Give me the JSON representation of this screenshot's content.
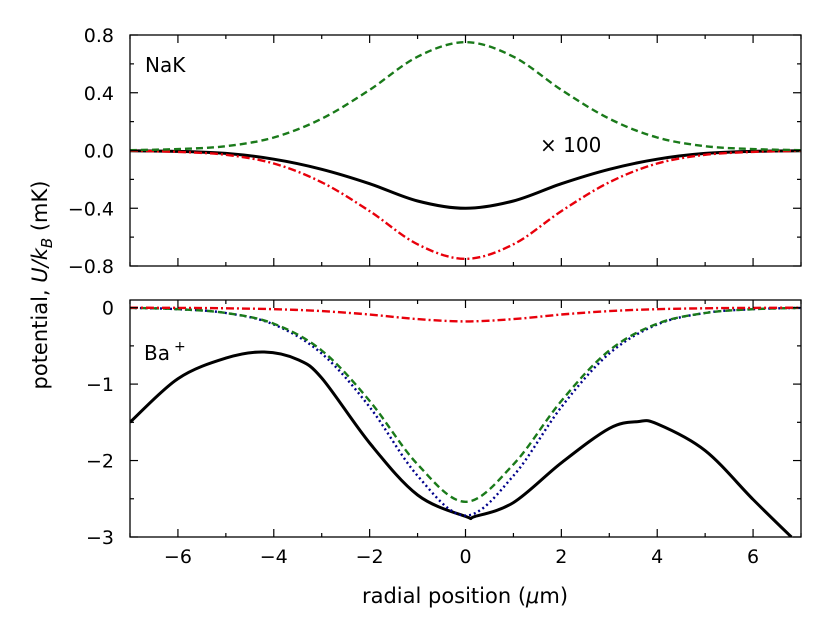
{
  "figure": {
    "xlabel_prefix": "radial position (",
    "xlabel_mu": "μ",
    "xlabel_suffix": "m)",
    "ylabel_prefix": "potential, ",
    "ylabel_U": "U",
    "ylabel_slash_k": "/k",
    "ylabel_sub": "B",
    "ylabel_suffix": " (mK)"
  },
  "chart_data": [
    {
      "type": "line",
      "panel": "top",
      "label": "NaK",
      "annotation": "× 100",
      "xlim": [
        -7,
        7
      ],
      "ylim": [
        -0.8,
        0.8
      ],
      "xticks": [
        -6,
        -4,
        -2,
        0,
        2,
        4,
        6
      ],
      "yticks": [
        -0.8,
        -0.4,
        0.0,
        0.4,
        0.8
      ],
      "ytick_labels": [
        "−0.8",
        "−0.4",
        "0.0",
        "0.4",
        "0.8"
      ],
      "series": [
        {
          "name": "total",
          "style": "solid",
          "color": "#000000",
          "x": [
            -7,
            -6,
            -5,
            -4,
            -3,
            -2,
            -1,
            0,
            1,
            2,
            3,
            4,
            5,
            6,
            7
          ],
          "y": [
            -0.002,
            -0.006,
            -0.02,
            -0.06,
            -0.13,
            -0.23,
            -0.35,
            -0.4,
            -0.35,
            -0.23,
            -0.13,
            -0.06,
            -0.02,
            -0.006,
            -0.002
          ]
        },
        {
          "name": "dash-dot",
          "style": "dashdot",
          "color": "#e8000b",
          "x": [
            -7,
            -6,
            -5,
            -4,
            -3,
            -2,
            -1,
            0,
            1,
            2,
            3,
            4,
            5,
            6,
            7
          ],
          "y": [
            -0.002,
            -0.01,
            -0.03,
            -0.09,
            -0.22,
            -0.42,
            -0.65,
            -0.75,
            -0.65,
            -0.42,
            -0.22,
            -0.09,
            -0.03,
            -0.01,
            -0.002
          ]
        },
        {
          "name": "dashed",
          "style": "dashed",
          "color": "#1a7a1a",
          "x": [
            -7,
            -6,
            -5,
            -4,
            -3,
            -2,
            -1,
            0,
            1,
            2,
            3,
            4,
            5,
            6,
            7
          ],
          "y": [
            0.002,
            0.01,
            0.03,
            0.09,
            0.22,
            0.42,
            0.65,
            0.75,
            0.65,
            0.42,
            0.22,
            0.09,
            0.03,
            0.01,
            0.002
          ]
        }
      ]
    },
    {
      "type": "line",
      "panel": "bottom",
      "label": "Ba",
      "label_sup": "+",
      "xlim": [
        -7,
        7
      ],
      "ylim": [
        -3,
        0.1
      ],
      "xticks": [
        -6,
        -4,
        -2,
        0,
        2,
        4,
        6
      ],
      "xtick_labels": [
        "−6",
        "−4",
        "−2",
        "0",
        "2",
        "4",
        "6"
      ],
      "yticks": [
        -3,
        -2,
        -1,
        0
      ],
      "ytick_labels": [
        "−3",
        "−2",
        "−1",
        "0"
      ],
      "series": [
        {
          "name": "total",
          "style": "solid",
          "color": "#000000",
          "x": [
            -7,
            -6,
            -5,
            -4.2,
            -3.5,
            -3,
            -2,
            -1,
            0,
            0.2,
            1,
            2,
            3,
            3.6,
            4,
            5,
            6,
            6.8
          ],
          "y": [
            -1.5,
            -0.93,
            -0.66,
            -0.58,
            -0.68,
            -0.92,
            -1.77,
            -2.45,
            -2.73,
            -2.73,
            -2.55,
            -2.03,
            -1.58,
            -1.49,
            -1.52,
            -1.87,
            -2.51,
            -3.0
          ]
        },
        {
          "name": "dotted",
          "style": "dotted",
          "color": "#00008b",
          "x": [
            -7,
            -6,
            -5,
            -4,
            -3,
            -2,
            -1,
            0,
            1,
            2,
            3,
            4,
            5,
            6,
            7
          ],
          "y": [
            -0.003,
            -0.02,
            -0.07,
            -0.22,
            -0.6,
            -1.3,
            -2.2,
            -2.72,
            -2.2,
            -1.3,
            -0.6,
            -0.22,
            -0.07,
            -0.02,
            -0.003
          ]
        },
        {
          "name": "dashed",
          "style": "dashed",
          "color": "#1a7a1a",
          "x": [
            -7,
            -6,
            -5,
            -4,
            -3,
            -2,
            -1,
            0,
            1,
            2,
            3,
            4,
            5,
            6,
            7
          ],
          "y": [
            -0.003,
            -0.02,
            -0.07,
            -0.21,
            -0.56,
            -1.22,
            -2.05,
            -2.54,
            -2.05,
            -1.22,
            -0.56,
            -0.21,
            -0.07,
            -0.02,
            -0.003
          ]
        },
        {
          "name": "dash-dot",
          "style": "dashdot",
          "color": "#e8000b",
          "x": [
            -7,
            -6,
            -5,
            -4,
            -3,
            -2,
            -1,
            0,
            1,
            2,
            3,
            4,
            5,
            6,
            7
          ],
          "y": [
            -0.001,
            -0.003,
            -0.008,
            -0.02,
            -0.045,
            -0.09,
            -0.15,
            -0.18,
            -0.15,
            -0.09,
            -0.045,
            -0.02,
            -0.008,
            -0.003,
            -0.001
          ]
        }
      ]
    }
  ]
}
